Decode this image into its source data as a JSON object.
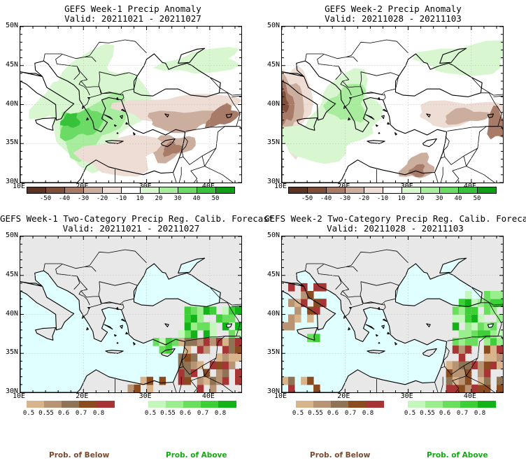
{
  "panels": [
    {
      "title": "GEFS Week-1 Precip Anomaly",
      "valid": "Valid: 20211021 - 20211027"
    },
    {
      "title": "GEFS Week-2 Precip Anomaly",
      "valid": "Valid: 20211028 - 20211103"
    },
    {
      "title": "GEFS Week-1 Two-Category Precip Reg. Calib. Forecast",
      "valid": "Valid: 20211021 - 20211027"
    },
    {
      "title": "GEFS Week-2 Two-Category Precip Reg. Calib. Forecast",
      "valid": "Valid: 20211028 - 20211103"
    }
  ],
  "axes": {
    "lat_labels": [
      "50N",
      "45N",
      "40N",
      "35N",
      "30N"
    ],
    "lon_labels": [
      "10E",
      "20E",
      "30E",
      "40E"
    ]
  },
  "anomaly_colorbar": {
    "labels": [
      "-50",
      "-40",
      "-30",
      "-20",
      "-10",
      "10",
      "20",
      "30",
      "40",
      "50"
    ],
    "colors": [
      "#5a3424",
      "#7e4e3a",
      "#a87b68",
      "#ccae9e",
      "#eeddd4",
      "#ffffff",
      "#d8f6d0",
      "#a8ec9e",
      "#6cdb66",
      "#37c23a",
      "#109c16"
    ]
  },
  "below_colorbar": {
    "labels": [
      "0.5",
      "0.55",
      "0.6",
      "0.7",
      "0.8"
    ],
    "colors": [
      "#d7b48b",
      "#b89474",
      "#8f7355",
      "#8a4b1f",
      "#a83535"
    ]
  },
  "above_colorbar": {
    "labels": [
      "0.5",
      "0.55",
      "0.6",
      "0.7",
      "0.8"
    ],
    "colors": [
      "#c4f7bc",
      "#9bee8e",
      "#6adf5e",
      "#3ccf36",
      "#12b318"
    ]
  },
  "prob_below_label": "Prob. of Below",
  "prob_above_label": "Prob. of Above",
  "colors": {
    "sea": "#e0ffff",
    "land_gray": "#e8e8e8",
    "prob_below_text": "#7a4a2e",
    "prob_above_text": "#13a913"
  }
}
